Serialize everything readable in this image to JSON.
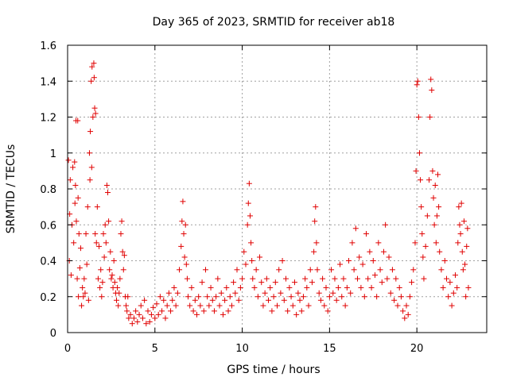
{
  "chart_data": {
    "type": "scatter",
    "title": "Day 365 of 2023, SRMTID for receiver ab18",
    "xlabel": "GPS time / hours",
    "ylabel": "SRMTID / TECUs",
    "xlim": [
      0,
      24
    ],
    "ylim": [
      0,
      1.6
    ],
    "x_ticks": [
      0,
      5,
      10,
      15,
      20
    ],
    "x_tick_labels": [
      "0",
      "5",
      "10",
      "15",
      "20"
    ],
    "y_ticks": [
      0,
      0.2,
      0.4,
      0.6,
      0.8,
      1.0,
      1.2,
      1.4,
      1.6
    ],
    "y_tick_labels": [
      "0",
      "0.2",
      "0.4",
      "0.6",
      "0.8",
      "1",
      "1.2",
      "1.4",
      "1.6"
    ],
    "grid": true,
    "marker": "+",
    "color": "#e00000",
    "series": [
      {
        "name": "SRMTID",
        "points": [
          [
            0.05,
            0.96
          ],
          [
            0.1,
            0.4
          ],
          [
            0.12,
            0.66
          ],
          [
            0.15,
            0.85
          ],
          [
            0.2,
            0.32
          ],
          [
            0.25,
            0.6
          ],
          [
            0.3,
            0.92
          ],
          [
            0.35,
            0.5
          ],
          [
            0.4,
            0.95
          ],
          [
            0.42,
            0.72
          ],
          [
            0.45,
            0.82
          ],
          [
            0.48,
            1.18
          ],
          [
            0.5,
            0.62
          ],
          [
            0.55,
            0.3
          ],
          [
            0.58,
            1.18
          ],
          [
            0.6,
            0.75
          ],
          [
            0.62,
            0.2
          ],
          [
            0.65,
            0.55
          ],
          [
            0.7,
            0.36
          ],
          [
            0.75,
            0.47
          ],
          [
            0.8,
            0.15
          ],
          [
            0.85,
            0.25
          ],
          [
            0.9,
            0.2
          ],
          [
            0.95,
            0.3
          ],
          [
            1.0,
            0.22
          ],
          [
            1.05,
            0.55
          ],
          [
            1.1,
            0.38
          ],
          [
            1.15,
            0.7
          ],
          [
            1.2,
            0.18
          ],
          [
            1.25,
            1.0
          ],
          [
            1.28,
            0.85
          ],
          [
            1.3,
            1.12
          ],
          [
            1.35,
            1.4
          ],
          [
            1.38,
            0.92
          ],
          [
            1.4,
            1.48
          ],
          [
            1.45,
            1.2
          ],
          [
            1.5,
            1.5
          ],
          [
            1.52,
            1.42
          ],
          [
            1.55,
            1.25
          ],
          [
            1.58,
            0.55
          ],
          [
            1.6,
            1.22
          ],
          [
            1.65,
            0.5
          ],
          [
            1.7,
            0.7
          ],
          [
            1.75,
            0.3
          ],
          [
            1.8,
            0.48
          ],
          [
            1.85,
            0.25
          ],
          [
            1.9,
            0.35
          ],
          [
            1.95,
            0.2
          ],
          [
            2.0,
            0.28
          ],
          [
            2.05,
            0.55
          ],
          [
            2.1,
            0.42
          ],
          [
            2.15,
            0.6
          ],
          [
            2.2,
            0.5
          ],
          [
            2.25,
            0.82
          ],
          [
            2.3,
            0.78
          ],
          [
            2.35,
            0.62
          ],
          [
            2.4,
            0.35
          ],
          [
            2.45,
            0.45
          ],
          [
            2.5,
            0.3
          ],
          [
            2.55,
            0.32
          ],
          [
            2.6,
            0.25
          ],
          [
            2.65,
            0.4
          ],
          [
            2.7,
            0.28
          ],
          [
            2.75,
            0.22
          ],
          [
            2.8,
            0.18
          ],
          [
            2.85,
            0.25
          ],
          [
            2.9,
            0.15
          ],
          [
            2.95,
            0.22
          ],
          [
            3.0,
            0.3
          ],
          [
            3.05,
            0.55
          ],
          [
            3.1,
            0.62
          ],
          [
            3.15,
            0.45
          ],
          [
            3.2,
            0.35
          ],
          [
            3.25,
            0.43
          ],
          [
            3.3,
            0.2
          ],
          [
            3.35,
            0.15
          ],
          [
            3.4,
            0.12
          ],
          [
            3.45,
            0.2
          ],
          [
            3.5,
            0.08
          ],
          [
            3.6,
            0.1
          ],
          [
            3.7,
            0.05
          ],
          [
            3.8,
            0.08
          ],
          [
            3.9,
            0.12
          ],
          [
            4.0,
            0.06
          ],
          [
            4.1,
            0.1
          ],
          [
            4.2,
            0.15
          ],
          [
            4.3,
            0.08
          ],
          [
            4.4,
            0.18
          ],
          [
            4.5,
            0.05
          ],
          [
            4.6,
            0.12
          ],
          [
            4.7,
            0.06
          ],
          [
            4.8,
            0.1
          ],
          [
            4.9,
            0.14
          ],
          [
            5.0,
            0.08
          ],
          [
            5.1,
            0.16
          ],
          [
            5.2,
            0.1
          ],
          [
            5.3,
            0.2
          ],
          [
            5.4,
            0.12
          ],
          [
            5.5,
            0.18
          ],
          [
            5.6,
            0.08
          ],
          [
            5.7,
            0.15
          ],
          [
            5.8,
            0.22
          ],
          [
            5.9,
            0.12
          ],
          [
            6.0,
            0.18
          ],
          [
            6.1,
            0.25
          ],
          [
            6.2,
            0.15
          ],
          [
            6.3,
            0.22
          ],
          [
            6.4,
            0.35
          ],
          [
            6.5,
            0.48
          ],
          [
            6.55,
            0.62
          ],
          [
            6.6,
            0.73
          ],
          [
            6.65,
            0.55
          ],
          [
            6.7,
            0.42
          ],
          [
            6.75,
            0.6
          ],
          [
            6.8,
            0.38
          ],
          [
            6.85,
            0.3
          ],
          [
            6.9,
            0.2
          ],
          [
            7.0,
            0.15
          ],
          [
            7.1,
            0.25
          ],
          [
            7.2,
            0.12
          ],
          [
            7.3,
            0.18
          ],
          [
            7.4,
            0.1
          ],
          [
            7.5,
            0.2
          ],
          [
            7.6,
            0.15
          ],
          [
            7.7,
            0.28
          ],
          [
            7.8,
            0.12
          ],
          [
            7.9,
            0.35
          ],
          [
            8.0,
            0.2
          ],
          [
            8.1,
            0.15
          ],
          [
            8.2,
            0.25
          ],
          [
            8.3,
            0.18
          ],
          [
            8.4,
            0.12
          ],
          [
            8.5,
            0.2
          ],
          [
            8.6,
            0.3
          ],
          [
            8.7,
            0.15
          ],
          [
            8.8,
            0.22
          ],
          [
            8.9,
            0.1
          ],
          [
            9.0,
            0.18
          ],
          [
            9.1,
            0.25
          ],
          [
            9.2,
            0.12
          ],
          [
            9.3,
            0.2
          ],
          [
            9.4,
            0.15
          ],
          [
            9.5,
            0.28
          ],
          [
            9.6,
            0.22
          ],
          [
            9.7,
            0.35
          ],
          [
            9.8,
            0.18
          ],
          [
            9.9,
            0.25
          ],
          [
            10.0,
            0.3
          ],
          [
            10.1,
            0.45
          ],
          [
            10.2,
            0.38
          ],
          [
            10.3,
            0.6
          ],
          [
            10.35,
            0.72
          ],
          [
            10.4,
            0.83
          ],
          [
            10.45,
            0.65
          ],
          [
            10.5,
            0.5
          ],
          [
            10.55,
            0.4
          ],
          [
            10.6,
            0.3
          ],
          [
            10.7,
            0.25
          ],
          [
            10.8,
            0.35
          ],
          [
            10.9,
            0.2
          ],
          [
            11.0,
            0.42
          ],
          [
            11.1,
            0.28
          ],
          [
            11.2,
            0.15
          ],
          [
            11.3,
            0.22
          ],
          [
            11.4,
            0.3
          ],
          [
            11.5,
            0.18
          ],
          [
            11.6,
            0.25
          ],
          [
            11.7,
            0.12
          ],
          [
            11.8,
            0.2
          ],
          [
            11.9,
            0.28
          ],
          [
            12.0,
            0.15
          ],
          [
            12.1,
            0.35
          ],
          [
            12.2,
            0.22
          ],
          [
            12.3,
            0.4
          ],
          [
            12.4,
            0.18
          ],
          [
            12.5,
            0.3
          ],
          [
            12.6,
            0.12
          ],
          [
            12.7,
            0.25
          ],
          [
            12.8,
            0.2
          ],
          [
            12.9,
            0.15
          ],
          [
            13.0,
            0.28
          ],
          [
            13.1,
            0.1
          ],
          [
            13.2,
            0.22
          ],
          [
            13.3,
            0.18
          ],
          [
            13.4,
            0.12
          ],
          [
            13.5,
            0.2
          ],
          [
            13.6,
            0.3
          ],
          [
            13.7,
            0.25
          ],
          [
            13.8,
            0.15
          ],
          [
            13.9,
            0.35
          ],
          [
            14.0,
            0.28
          ],
          [
            14.1,
            0.45
          ],
          [
            14.15,
            0.62
          ],
          [
            14.2,
            0.7
          ],
          [
            14.25,
            0.5
          ],
          [
            14.3,
            0.35
          ],
          [
            14.4,
            0.22
          ],
          [
            14.5,
            0.18
          ],
          [
            14.6,
            0.3
          ],
          [
            14.7,
            0.15
          ],
          [
            14.8,
            0.25
          ],
          [
            14.9,
            0.12
          ],
          [
            15.0,
            0.2
          ],
          [
            15.1,
            0.35
          ],
          [
            15.2,
            0.22
          ],
          [
            15.3,
            0.3
          ],
          [
            15.4,
            0.18
          ],
          [
            15.5,
            0.25
          ],
          [
            15.6,
            0.38
          ],
          [
            15.7,
            0.2
          ],
          [
            15.8,
            0.3
          ],
          [
            15.9,
            0.15
          ],
          [
            16.0,
            0.25
          ],
          [
            16.1,
            0.4
          ],
          [
            16.2,
            0.22
          ],
          [
            16.3,
            0.5
          ],
          [
            16.4,
            0.35
          ],
          [
            16.5,
            0.58
          ],
          [
            16.6,
            0.3
          ],
          [
            16.7,
            0.42
          ],
          [
            16.8,
            0.25
          ],
          [
            16.9,
            0.38
          ],
          [
            17.0,
            0.2
          ],
          [
            17.1,
            0.55
          ],
          [
            17.2,
            0.3
          ],
          [
            17.3,
            0.45
          ],
          [
            17.4,
            0.25
          ],
          [
            17.5,
            0.4
          ],
          [
            17.6,
            0.32
          ],
          [
            17.7,
            0.2
          ],
          [
            17.8,
            0.5
          ],
          [
            17.9,
            0.35
          ],
          [
            18.0,
            0.28
          ],
          [
            18.1,
            0.45
          ],
          [
            18.2,
            0.6
          ],
          [
            18.3,
            0.3
          ],
          [
            18.4,
            0.42
          ],
          [
            18.5,
            0.22
          ],
          [
            18.6,
            0.35
          ],
          [
            18.7,
            0.18
          ],
          [
            18.8,
            0.3
          ],
          [
            18.9,
            0.15
          ],
          [
            19.0,
            0.25
          ],
          [
            19.1,
            0.2
          ],
          [
            19.2,
            0.12
          ],
          [
            19.3,
            0.08
          ],
          [
            19.4,
            0.15
          ],
          [
            19.5,
            0.1
          ],
          [
            19.6,
            0.2
          ],
          [
            19.7,
            0.28
          ],
          [
            19.8,
            0.35
          ],
          [
            19.9,
            0.5
          ],
          [
            19.95,
            0.9
          ],
          [
            20.0,
            1.38
          ],
          [
            20.05,
            1.4
          ],
          [
            20.1,
            1.2
          ],
          [
            20.15,
            1.0
          ],
          [
            20.2,
            0.85
          ],
          [
            20.25,
            0.7
          ],
          [
            20.3,
            0.55
          ],
          [
            20.35,
            0.42
          ],
          [
            20.4,
            0.3
          ],
          [
            20.5,
            0.48
          ],
          [
            20.6,
            0.65
          ],
          [
            20.7,
            0.85
          ],
          [
            20.75,
            1.2
          ],
          [
            20.8,
            1.41
          ],
          [
            20.85,
            1.35
          ],
          [
            20.9,
            0.9
          ],
          [
            20.95,
            0.75
          ],
          [
            21.0,
            0.6
          ],
          [
            21.05,
            0.82
          ],
          [
            21.1,
            0.5
          ],
          [
            21.15,
            0.65
          ],
          [
            21.2,
            0.88
          ],
          [
            21.25,
            0.7
          ],
          [
            21.3,
            0.45
          ],
          [
            21.4,
            0.35
          ],
          [
            21.5,
            0.25
          ],
          [
            21.6,
            0.4
          ],
          [
            21.7,
            0.3
          ],
          [
            21.8,
            0.2
          ],
          [
            21.9,
            0.28
          ],
          [
            22.0,
            0.15
          ],
          [
            22.1,
            0.22
          ],
          [
            22.2,
            0.32
          ],
          [
            22.3,
            0.25
          ],
          [
            22.35,
            0.5
          ],
          [
            22.4,
            0.7
          ],
          [
            22.45,
            0.6
          ],
          [
            22.5,
            0.55
          ],
          [
            22.55,
            0.72
          ],
          [
            22.6,
            0.45
          ],
          [
            22.65,
            0.35
          ],
          [
            22.7,
            0.62
          ],
          [
            22.75,
            0.38
          ],
          [
            22.8,
            0.2
          ],
          [
            22.85,
            0.48
          ],
          [
            22.9,
            0.58
          ],
          [
            22.95,
            0.25
          ]
        ]
      }
    ]
  }
}
